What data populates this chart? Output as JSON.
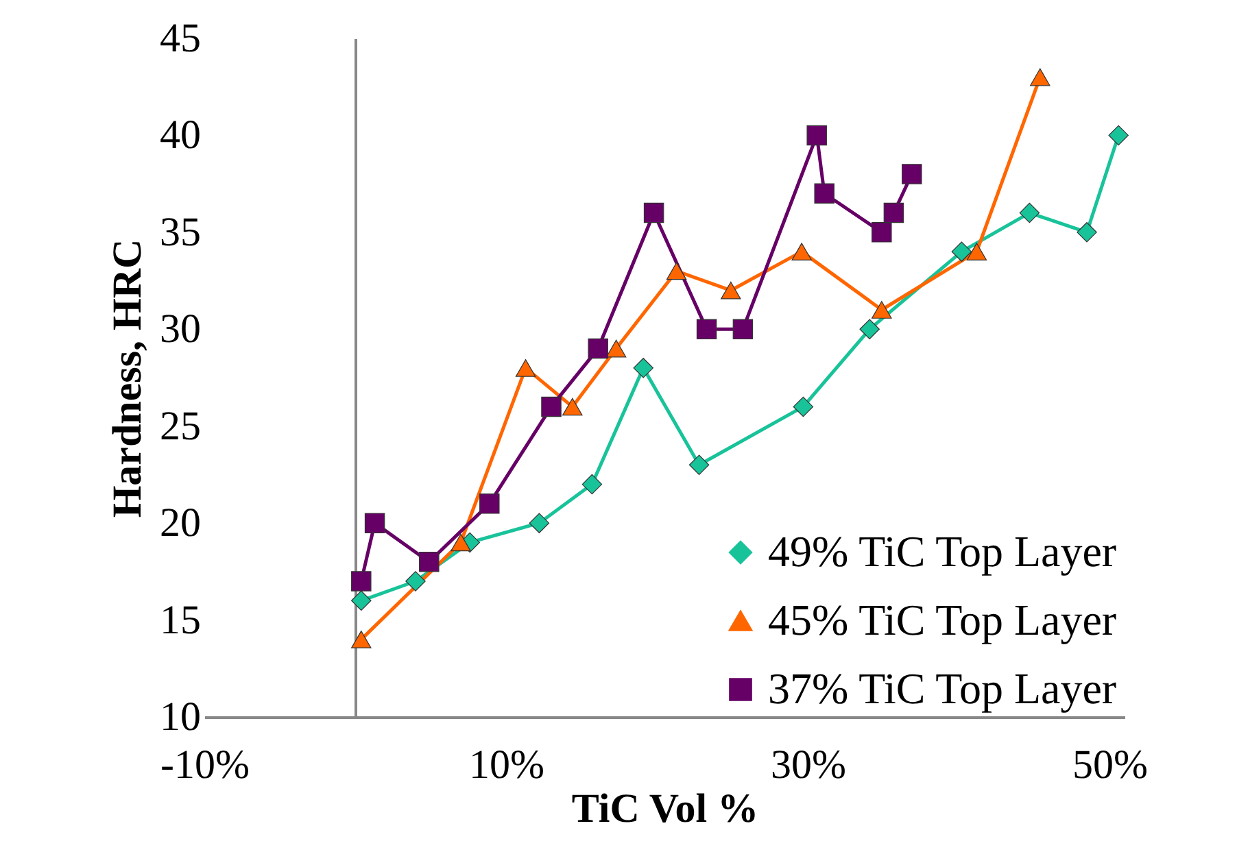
{
  "chart_data": {
    "type": "line",
    "xlabel": "TiC Vol %",
    "ylabel": "Hardness, HRC",
    "xlim": [
      -10,
      51
    ],
    "xticks": [
      {
        "value": -10,
        "label": "-10%"
      },
      {
        "value": 10,
        "label": "10%"
      },
      {
        "value": 30,
        "label": "30%"
      },
      {
        "value": 50,
        "label": "50%"
      }
    ],
    "ylim": [
      10,
      45
    ],
    "yticks": [
      10,
      15,
      20,
      25,
      30,
      35,
      40,
      45
    ],
    "grid": false,
    "legend": "bottom right",
    "line_style": "solid",
    "series": [
      {
        "name": "49% TiC Top Layer",
        "color": "#19c39a",
        "marker": "diamond",
        "x": [
          0.4,
          4,
          7.6,
          12.2,
          15.7,
          19.1,
          22.8,
          29.7,
          34.1,
          40.2,
          44.7,
          48.5,
          50.6
        ],
        "values": [
          16,
          17,
          19,
          20,
          22,
          28,
          23,
          26,
          30,
          34,
          36,
          35,
          40
        ]
      },
      {
        "name": "45% TiC Top Layer",
        "color": "#ff6600",
        "marker": "triangle",
        "x": [
          0.4,
          7,
          11.3,
          14.4,
          17.3,
          21.3,
          24.9,
          29.6,
          34.9,
          41.2,
          45.4
        ],
        "values": [
          14,
          19,
          28,
          26,
          29,
          33,
          32,
          34,
          31,
          34,
          43
        ]
      },
      {
        "name": "37% TiC Top Layer",
        "color": "#660066",
        "marker": "square",
        "x": [
          0.4,
          1.3,
          4.9,
          8.9,
          13,
          16.1,
          19.8,
          23.3,
          25.7,
          30.6,
          31.1,
          34.9,
          35.7,
          36.9
        ],
        "values": [
          17,
          20,
          18,
          21,
          26,
          29,
          36,
          30,
          30,
          40,
          37,
          35,
          36,
          38
        ]
      }
    ]
  }
}
